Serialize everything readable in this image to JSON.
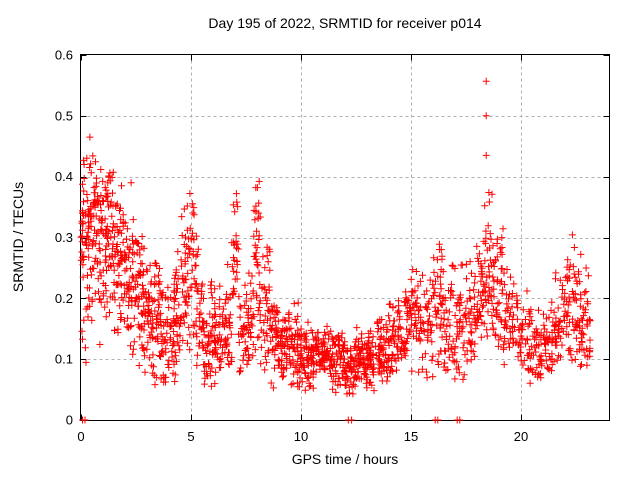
{
  "chart_data": {
    "type": "scatter",
    "title": "Day 195 of 2022, SRMTID for receiver p014",
    "xlabel": "GPS time / hours",
    "ylabel": "SRMTID / TECUs",
    "xlim": [
      0,
      24
    ],
    "ylim": [
      0,
      0.6
    ],
    "xticks": [
      0,
      5,
      10,
      15,
      20
    ],
    "xtick_labels": [
      "0",
      "5",
      "10",
      "15",
      "20"
    ],
    "yticks": [
      0,
      0.1,
      0.2,
      0.3,
      0.4,
      0.5,
      0.6
    ],
    "ytick_labels": [
      "0",
      "0.1",
      "0.2",
      "0.3",
      "0.4",
      "0.5",
      "0.6"
    ],
    "grid": {
      "show": true,
      "color": "#b0b0b0",
      "dash": [
        3,
        3
      ]
    },
    "legend": "none",
    "marker": {
      "shape": "plus",
      "color": "#ff0000",
      "size": 7
    },
    "series_name": "SRMTID",
    "outlier_points": [
      [
        18.42,
        0.557
      ],
      [
        18.42,
        0.5
      ],
      [
        18.42,
        0.435
      ]
    ],
    "zero_points": [
      0.07,
      0.18,
      12.15,
      12.3,
      16.1,
      16.22,
      17.1,
      17.22
    ],
    "density_bands": [
      [
        0.0,
        0.4,
        0.08,
        0.32,
        0.48,
        60
      ],
      [
        0.4,
        0.8,
        0.14,
        0.36,
        0.47,
        55
      ],
      [
        0.8,
        1.2,
        0.12,
        0.32,
        0.44,
        55
      ],
      [
        1.2,
        1.6,
        0.11,
        0.29,
        0.42,
        50
      ],
      [
        1.6,
        2.0,
        0.1,
        0.27,
        0.41,
        50
      ],
      [
        2.0,
        2.4,
        0.09,
        0.25,
        0.4,
        48
      ],
      [
        2.4,
        2.8,
        0.07,
        0.21,
        0.34,
        46
      ],
      [
        2.8,
        3.2,
        0.06,
        0.17,
        0.3,
        46
      ],
      [
        3.2,
        3.6,
        0.05,
        0.15,
        0.27,
        44
      ],
      [
        3.6,
        4.0,
        0.04,
        0.13,
        0.24,
        42
      ],
      [
        4.0,
        4.3,
        0.05,
        0.14,
        0.26,
        32
      ],
      [
        4.3,
        4.55,
        0.06,
        0.16,
        0.3,
        26
      ],
      [
        4.55,
        4.85,
        0.08,
        0.22,
        0.38,
        32
      ],
      [
        4.85,
        5.25,
        0.09,
        0.24,
        0.41,
        42
      ],
      [
        5.25,
        5.6,
        0.06,
        0.16,
        0.33,
        34
      ],
      [
        5.6,
        6.0,
        0.04,
        0.13,
        0.26,
        40
      ],
      [
        6.0,
        6.4,
        0.04,
        0.12,
        0.24,
        40
      ],
      [
        6.4,
        6.85,
        0.06,
        0.14,
        0.27,
        42
      ],
      [
        6.85,
        7.15,
        0.14,
        0.27,
        0.39,
        28
      ],
      [
        7.15,
        7.55,
        0.06,
        0.13,
        0.24,
        32
      ],
      [
        7.55,
        7.85,
        0.08,
        0.15,
        0.26,
        26
      ],
      [
        7.85,
        8.15,
        0.1,
        0.28,
        0.41,
        38
      ],
      [
        8.15,
        8.6,
        0.07,
        0.16,
        0.3,
        38
      ],
      [
        8.6,
        9.0,
        0.05,
        0.13,
        0.22,
        40
      ],
      [
        9.0,
        9.4,
        0.04,
        0.11,
        0.19,
        42
      ],
      [
        9.4,
        9.9,
        0.04,
        0.12,
        0.22,
        48
      ],
      [
        9.9,
        10.4,
        0.04,
        0.1,
        0.17,
        50
      ],
      [
        10.4,
        10.9,
        0.04,
        0.1,
        0.17,
        50
      ],
      [
        10.9,
        11.4,
        0.04,
        0.1,
        0.16,
        50
      ],
      [
        11.4,
        11.9,
        0.04,
        0.09,
        0.16,
        50
      ],
      [
        11.9,
        12.4,
        0.03,
        0.09,
        0.15,
        52
      ],
      [
        12.4,
        12.9,
        0.04,
        0.09,
        0.16,
        52
      ],
      [
        12.9,
        13.4,
        0.04,
        0.1,
        0.17,
        52
      ],
      [
        13.4,
        13.9,
        0.05,
        0.11,
        0.18,
        50
      ],
      [
        13.9,
        14.4,
        0.05,
        0.12,
        0.2,
        46
      ],
      [
        14.4,
        14.9,
        0.06,
        0.13,
        0.24,
        44
      ],
      [
        14.9,
        15.4,
        0.07,
        0.16,
        0.3,
        42
      ],
      [
        15.4,
        16.0,
        0.06,
        0.14,
        0.26,
        44
      ],
      [
        16.0,
        16.5,
        0.08,
        0.18,
        0.32,
        44
      ],
      [
        16.5,
        17.0,
        0.05,
        0.14,
        0.26,
        40
      ],
      [
        17.0,
        17.5,
        0.04,
        0.13,
        0.27,
        40
      ],
      [
        17.5,
        18.0,
        0.08,
        0.16,
        0.3,
        40
      ],
      [
        18.0,
        18.3,
        0.1,
        0.19,
        0.33,
        30
      ],
      [
        18.3,
        18.7,
        0.12,
        0.25,
        0.38,
        42
      ],
      [
        18.7,
        19.2,
        0.1,
        0.2,
        0.33,
        44
      ],
      [
        19.2,
        19.8,
        0.08,
        0.15,
        0.26,
        44
      ],
      [
        19.8,
        20.4,
        0.07,
        0.14,
        0.22,
        44
      ],
      [
        20.4,
        21.0,
        0.04,
        0.12,
        0.2,
        44
      ],
      [
        21.0,
        21.5,
        0.07,
        0.13,
        0.21,
        40
      ],
      [
        21.5,
        22.0,
        0.08,
        0.15,
        0.26,
        40
      ],
      [
        22.0,
        22.5,
        0.08,
        0.17,
        0.31,
        44
      ],
      [
        22.5,
        23.0,
        0.07,
        0.15,
        0.29,
        44
      ],
      [
        23.0,
        23.15,
        0.06,
        0.13,
        0.25,
        14
      ]
    ],
    "seed": 195
  }
}
